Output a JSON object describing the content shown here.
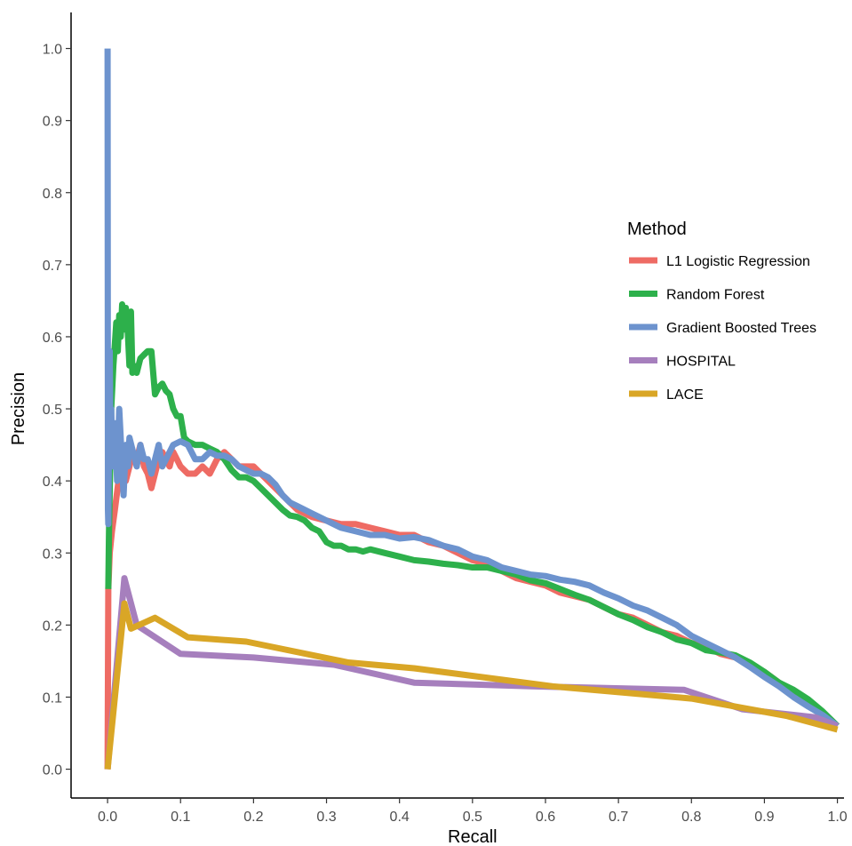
{
  "chart_data": {
    "type": "line",
    "title": "",
    "xlabel": "Recall",
    "ylabel": "Precision",
    "xlim": [
      -0.05,
      1.02
    ],
    "ylim": [
      -0.04,
      1.05
    ],
    "x_ticks": [
      "0.0",
      "0.1",
      "0.2",
      "0.3",
      "0.4",
      "0.5",
      "0.6",
      "0.7",
      "0.8",
      "0.9",
      "1.0"
    ],
    "y_ticks": [
      "0.0",
      "0.1",
      "0.2",
      "0.3",
      "0.4",
      "0.5",
      "0.6",
      "0.7",
      "0.8",
      "0.9",
      "1.0"
    ],
    "grid": false,
    "legend": {
      "title": "Method",
      "position": "right",
      "entries": [
        "L1 Logistic Regression",
        "Random Forest",
        "Gradient Boosted Trees",
        "HOSPITAL",
        "LACE"
      ]
    },
    "series": [
      {
        "name": "L1 Logistic Regression",
        "color": "#EE6B64",
        "points": [
          [
            0.0,
            0.0
          ],
          [
            0.001,
            0.25
          ],
          [
            0.003,
            0.3
          ],
          [
            0.006,
            0.33
          ],
          [
            0.01,
            0.36
          ],
          [
            0.015,
            0.4
          ],
          [
            0.02,
            0.42
          ],
          [
            0.025,
            0.4
          ],
          [
            0.03,
            0.42
          ],
          [
            0.035,
            0.44
          ],
          [
            0.04,
            0.43
          ],
          [
            0.045,
            0.45
          ],
          [
            0.05,
            0.42
          ],
          [
            0.055,
            0.41
          ],
          [
            0.06,
            0.39
          ],
          [
            0.065,
            0.41
          ],
          [
            0.07,
            0.43
          ],
          [
            0.075,
            0.44
          ],
          [
            0.08,
            0.43
          ],
          [
            0.085,
            0.42
          ],
          [
            0.09,
            0.44
          ],
          [
            0.095,
            0.43
          ],
          [
            0.1,
            0.42
          ],
          [
            0.11,
            0.41
          ],
          [
            0.12,
            0.41
          ],
          [
            0.13,
            0.42
          ],
          [
            0.14,
            0.41
          ],
          [
            0.15,
            0.43
          ],
          [
            0.16,
            0.44
          ],
          [
            0.17,
            0.43
          ],
          [
            0.18,
            0.42
          ],
          [
            0.19,
            0.42
          ],
          [
            0.2,
            0.42
          ],
          [
            0.21,
            0.41
          ],
          [
            0.22,
            0.4
          ],
          [
            0.23,
            0.39
          ],
          [
            0.24,
            0.38
          ],
          [
            0.25,
            0.37
          ],
          [
            0.26,
            0.36
          ],
          [
            0.27,
            0.355
          ],
          [
            0.28,
            0.35
          ],
          [
            0.3,
            0.345
          ],
          [
            0.32,
            0.34
          ],
          [
            0.34,
            0.34
          ],
          [
            0.36,
            0.335
          ],
          [
            0.38,
            0.33
          ],
          [
            0.4,
            0.325
          ],
          [
            0.42,
            0.325
          ],
          [
            0.44,
            0.315
          ],
          [
            0.46,
            0.31
          ],
          [
            0.48,
            0.3
          ],
          [
            0.5,
            0.29
          ],
          [
            0.52,
            0.285
          ],
          [
            0.54,
            0.275
          ],
          [
            0.56,
            0.265
          ],
          [
            0.58,
            0.26
          ],
          [
            0.6,
            0.255
          ],
          [
            0.62,
            0.245
          ],
          [
            0.64,
            0.24
          ],
          [
            0.66,
            0.235
          ],
          [
            0.68,
            0.225
          ],
          [
            0.7,
            0.215
          ],
          [
            0.72,
            0.21
          ],
          [
            0.74,
            0.2
          ],
          [
            0.76,
            0.19
          ],
          [
            0.78,
            0.185
          ],
          [
            0.8,
            0.175
          ],
          [
            0.82,
            0.17
          ],
          [
            0.84,
            0.16
          ],
          [
            0.86,
            0.155
          ],
          [
            0.88,
            0.145
          ],
          [
            0.9,
            0.135
          ],
          [
            0.92,
            0.12
          ],
          [
            0.94,
            0.105
          ],
          [
            0.96,
            0.09
          ],
          [
            0.98,
            0.075
          ],
          [
            1.0,
            0.06
          ]
        ]
      },
      {
        "name": "Random Forest",
        "color": "#2DB04B",
        "points": [
          [
            0.001,
            0.25
          ],
          [
            0.002,
            0.33
          ],
          [
            0.005,
            0.5
          ],
          [
            0.008,
            0.56
          ],
          [
            0.01,
            0.59
          ],
          [
            0.012,
            0.62
          ],
          [
            0.014,
            0.58
          ],
          [
            0.016,
            0.63
          ],
          [
            0.018,
            0.6
          ],
          [
            0.02,
            0.645
          ],
          [
            0.022,
            0.61
          ],
          [
            0.025,
            0.64
          ],
          [
            0.027,
            0.62
          ],
          [
            0.03,
            0.56
          ],
          [
            0.032,
            0.635
          ],
          [
            0.034,
            0.55
          ],
          [
            0.036,
            0.56
          ],
          [
            0.04,
            0.55
          ],
          [
            0.045,
            0.57
          ],
          [
            0.05,
            0.575
          ],
          [
            0.055,
            0.58
          ],
          [
            0.06,
            0.58
          ],
          [
            0.065,
            0.52
          ],
          [
            0.07,
            0.53
          ],
          [
            0.075,
            0.535
          ],
          [
            0.08,
            0.525
          ],
          [
            0.085,
            0.52
          ],
          [
            0.09,
            0.5
          ],
          [
            0.095,
            0.49
          ],
          [
            0.1,
            0.49
          ],
          [
            0.105,
            0.46
          ],
          [
            0.11,
            0.455
          ],
          [
            0.12,
            0.45
          ],
          [
            0.13,
            0.45
          ],
          [
            0.14,
            0.445
          ],
          [
            0.15,
            0.44
          ],
          [
            0.16,
            0.43
          ],
          [
            0.17,
            0.415
          ],
          [
            0.18,
            0.405
          ],
          [
            0.19,
            0.405
          ],
          [
            0.2,
            0.4
          ],
          [
            0.21,
            0.39
          ],
          [
            0.22,
            0.38
          ],
          [
            0.23,
            0.37
          ],
          [
            0.24,
            0.36
          ],
          [
            0.25,
            0.352
          ],
          [
            0.26,
            0.35
          ],
          [
            0.27,
            0.345
          ],
          [
            0.28,
            0.335
          ],
          [
            0.29,
            0.33
          ],
          [
            0.3,
            0.315
          ],
          [
            0.31,
            0.31
          ],
          [
            0.32,
            0.31
          ],
          [
            0.33,
            0.305
          ],
          [
            0.34,
            0.305
          ],
          [
            0.35,
            0.302
          ],
          [
            0.36,
            0.305
          ],
          [
            0.38,
            0.3
          ],
          [
            0.4,
            0.295
          ],
          [
            0.42,
            0.29
          ],
          [
            0.44,
            0.288
          ],
          [
            0.46,
            0.285
          ],
          [
            0.48,
            0.283
          ],
          [
            0.5,
            0.28
          ],
          [
            0.52,
            0.28
          ],
          [
            0.54,
            0.275
          ],
          [
            0.56,
            0.27
          ],
          [
            0.58,
            0.262
          ],
          [
            0.6,
            0.258
          ],
          [
            0.62,
            0.25
          ],
          [
            0.64,
            0.242
          ],
          [
            0.66,
            0.235
          ],
          [
            0.68,
            0.225
          ],
          [
            0.7,
            0.215
          ],
          [
            0.72,
            0.207
          ],
          [
            0.74,
            0.197
          ],
          [
            0.76,
            0.19
          ],
          [
            0.78,
            0.18
          ],
          [
            0.8,
            0.175
          ],
          [
            0.82,
            0.165
          ],
          [
            0.84,
            0.162
          ],
          [
            0.86,
            0.158
          ],
          [
            0.88,
            0.148
          ],
          [
            0.9,
            0.135
          ],
          [
            0.92,
            0.12
          ],
          [
            0.94,
            0.11
          ],
          [
            0.96,
            0.097
          ],
          [
            0.98,
            0.08
          ],
          [
            1.0,
            0.06
          ]
        ]
      },
      {
        "name": "Gradient Boosted Trees",
        "color": "#6D93CE",
        "points": [
          [
            0.0,
            1.0
          ],
          [
            0.0005,
            0.36
          ],
          [
            0.001,
            0.34
          ],
          [
            0.002,
            0.45
          ],
          [
            0.003,
            0.58
          ],
          [
            0.004,
            0.43
          ],
          [
            0.005,
            0.5
          ],
          [
            0.007,
            0.42
          ],
          [
            0.01,
            0.48
          ],
          [
            0.013,
            0.4
          ],
          [
            0.016,
            0.5
          ],
          [
            0.02,
            0.42
          ],
          [
            0.022,
            0.38
          ],
          [
            0.025,
            0.45
          ],
          [
            0.028,
            0.42
          ],
          [
            0.03,
            0.46
          ],
          [
            0.035,
            0.44
          ],
          [
            0.04,
            0.42
          ],
          [
            0.045,
            0.45
          ],
          [
            0.05,
            0.43
          ],
          [
            0.055,
            0.43
          ],
          [
            0.06,
            0.41
          ],
          [
            0.065,
            0.43
          ],
          [
            0.07,
            0.45
          ],
          [
            0.075,
            0.42
          ],
          [
            0.08,
            0.43
          ],
          [
            0.085,
            0.44
          ],
          [
            0.09,
            0.45
          ],
          [
            0.1,
            0.455
          ],
          [
            0.11,
            0.45
          ],
          [
            0.12,
            0.43
          ],
          [
            0.13,
            0.43
          ],
          [
            0.14,
            0.44
          ],
          [
            0.15,
            0.435
          ],
          [
            0.16,
            0.435
          ],
          [
            0.17,
            0.43
          ],
          [
            0.18,
            0.42
          ],
          [
            0.19,
            0.415
          ],
          [
            0.2,
            0.41
          ],
          [
            0.21,
            0.41
          ],
          [
            0.22,
            0.405
          ],
          [
            0.23,
            0.395
          ],
          [
            0.24,
            0.38
          ],
          [
            0.25,
            0.37
          ],
          [
            0.26,
            0.365
          ],
          [
            0.27,
            0.36
          ],
          [
            0.28,
            0.355
          ],
          [
            0.3,
            0.345
          ],
          [
            0.32,
            0.335
          ],
          [
            0.34,
            0.33
          ],
          [
            0.36,
            0.325
          ],
          [
            0.38,
            0.325
          ],
          [
            0.4,
            0.32
          ],
          [
            0.42,
            0.322
          ],
          [
            0.44,
            0.318
          ],
          [
            0.46,
            0.31
          ],
          [
            0.48,
            0.305
          ],
          [
            0.5,
            0.295
          ],
          [
            0.52,
            0.29
          ],
          [
            0.54,
            0.28
          ],
          [
            0.56,
            0.275
          ],
          [
            0.58,
            0.27
          ],
          [
            0.6,
            0.268
          ],
          [
            0.62,
            0.263
          ],
          [
            0.64,
            0.26
          ],
          [
            0.66,
            0.255
          ],
          [
            0.68,
            0.245
          ],
          [
            0.7,
            0.237
          ],
          [
            0.72,
            0.227
          ],
          [
            0.74,
            0.22
          ],
          [
            0.76,
            0.21
          ],
          [
            0.78,
            0.2
          ],
          [
            0.8,
            0.185
          ],
          [
            0.82,
            0.175
          ],
          [
            0.84,
            0.165
          ],
          [
            0.86,
            0.155
          ],
          [
            0.88,
            0.142
          ],
          [
            0.9,
            0.128
          ],
          [
            0.92,
            0.115
          ],
          [
            0.94,
            0.1
          ],
          [
            0.96,
            0.087
          ],
          [
            0.98,
            0.075
          ],
          [
            1.0,
            0.06
          ]
        ]
      },
      {
        "name": "HOSPITAL",
        "color": "#A67FBD",
        "points": [
          [
            0.0,
            0.0
          ],
          [
            0.023,
            0.265
          ],
          [
            0.04,
            0.2
          ],
          [
            0.1,
            0.16
          ],
          [
            0.2,
            0.155
          ],
          [
            0.31,
            0.145
          ],
          [
            0.42,
            0.12
          ],
          [
            0.58,
            0.115
          ],
          [
            0.79,
            0.11
          ],
          [
            0.87,
            0.083
          ],
          [
            0.97,
            0.072
          ],
          [
            1.0,
            0.06
          ]
        ]
      },
      {
        "name": "LACE",
        "color": "#D9A626",
        "points": [
          [
            0.0,
            0.0
          ],
          [
            0.023,
            0.23
          ],
          [
            0.032,
            0.195
          ],
          [
            0.065,
            0.21
          ],
          [
            0.11,
            0.183
          ],
          [
            0.19,
            0.177
          ],
          [
            0.33,
            0.148
          ],
          [
            0.42,
            0.14
          ],
          [
            0.61,
            0.115
          ],
          [
            0.8,
            0.098
          ],
          [
            0.87,
            0.085
          ],
          [
            0.93,
            0.074
          ],
          [
            1.0,
            0.055
          ]
        ]
      }
    ]
  }
}
